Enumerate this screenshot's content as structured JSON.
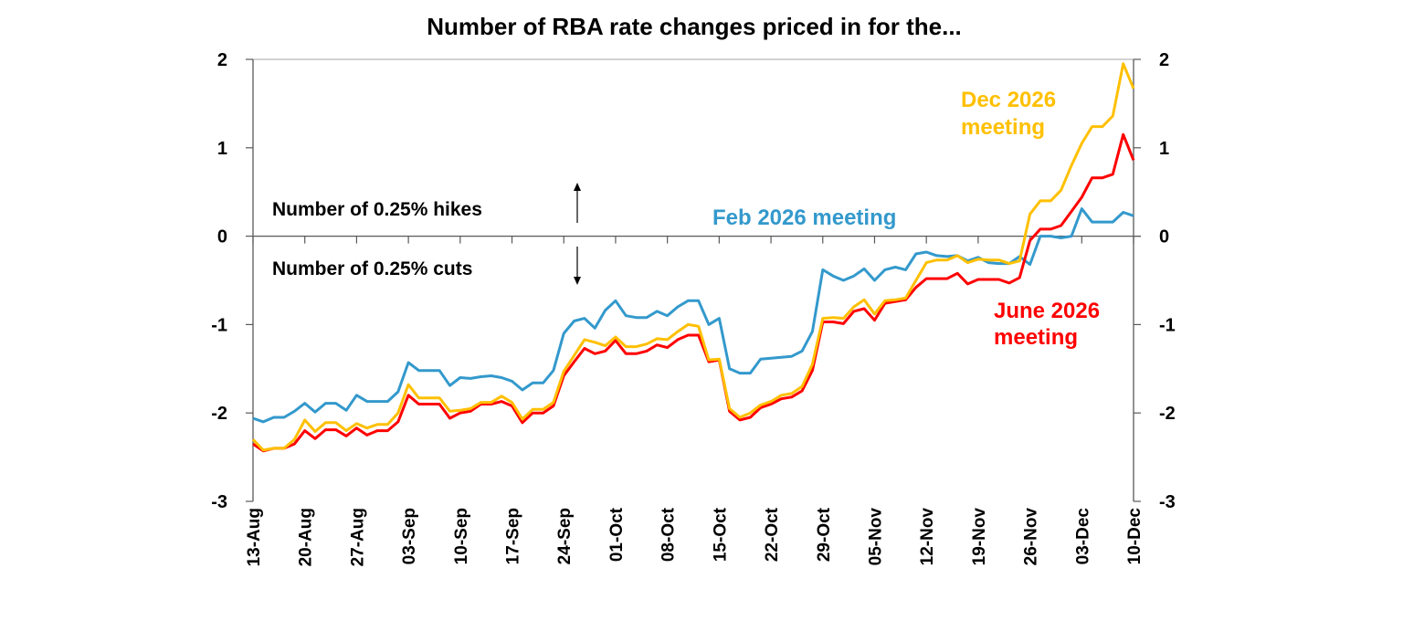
{
  "chart_data": {
    "type": "line",
    "title": "Number of RBA rate changes priced in for the...",
    "xlabel": "",
    "ylabel": "",
    "ylim": [
      -3,
      2
    ],
    "y_ticks": [
      2,
      1,
      0,
      -1,
      -2,
      -3
    ],
    "y_tick_labels": [
      "2",
      "1",
      "0",
      "-1",
      "-2",
      "-3"
    ],
    "x_tick_labels": [
      "13-Aug",
      "20-Aug",
      "27-Aug",
      "03-Sep",
      "10-Sep",
      "17-Sep",
      "24-Sep",
      "01-Oct",
      "08-Oct",
      "15-Oct",
      "22-Oct",
      "29-Oct",
      "05-Nov",
      "12-Nov",
      "19-Nov",
      "26-Nov",
      "03-Dec",
      "10-Dec"
    ],
    "grid": false,
    "secondary_y_axis": true,
    "dates": [
      "13-Aug",
      "14-Aug",
      "15-Aug",
      "18-Aug",
      "19-Aug",
      "20-Aug",
      "21-Aug",
      "22-Aug",
      "25-Aug",
      "26-Aug",
      "27-Aug",
      "28-Aug",
      "29-Aug",
      "01-Sep",
      "02-Sep",
      "03-Sep",
      "04-Sep",
      "05-Sep",
      "08-Sep",
      "09-Sep",
      "10-Sep",
      "11-Sep",
      "12-Sep",
      "15-Sep",
      "16-Sep",
      "17-Sep",
      "18-Sep",
      "19-Sep",
      "22-Sep",
      "23-Sep",
      "24-Sep",
      "25-Sep",
      "26-Sep",
      "29-Sep",
      "30-Sep",
      "01-Oct",
      "02-Oct",
      "03-Oct",
      "06-Oct",
      "07-Oct",
      "08-Oct",
      "09-Oct",
      "10-Oct",
      "13-Oct",
      "14-Oct",
      "15-Oct",
      "16-Oct",
      "17-Oct",
      "20-Oct",
      "21-Oct",
      "22-Oct",
      "23-Oct",
      "24-Oct",
      "27-Oct",
      "28-Oct",
      "29-Oct",
      "30-Oct",
      "31-Oct",
      "03-Nov",
      "04-Nov",
      "05-Nov",
      "06-Nov",
      "07-Nov",
      "10-Nov",
      "11-Nov",
      "12-Nov",
      "13-Nov",
      "14-Nov",
      "17-Nov",
      "18-Nov",
      "19-Nov",
      "20-Nov",
      "21-Nov",
      "24-Nov",
      "25-Nov",
      "26-Nov",
      "27-Nov",
      "28-Nov",
      "01-Dec",
      "02-Dec",
      "03-Dec",
      "04-Dec",
      "05-Dec",
      "08-Dec",
      "09-Dec",
      "10-Dec"
    ],
    "series": [
      {
        "name": "Feb 2026 meeting",
        "color": "#3399CC",
        "values": [
          -2.06,
          -2.1,
          -2.05,
          -2.05,
          -1.98,
          -1.89,
          -1.99,
          -1.89,
          -1.89,
          -1.97,
          -1.8,
          -1.87,
          -1.87,
          -1.87,
          -1.76,
          -1.43,
          -1.52,
          -1.52,
          -1.52,
          -1.69,
          -1.6,
          -1.61,
          -1.59,
          -1.58,
          -1.6,
          -1.64,
          -1.74,
          -1.66,
          -1.66,
          -1.52,
          -1.1,
          -0.96,
          -0.93,
          -1.04,
          -0.84,
          -0.73,
          -0.9,
          -0.92,
          -0.92,
          -0.85,
          -0.9,
          -0.8,
          -0.73,
          -0.73,
          -1.0,
          -0.93,
          -1.5,
          -1.55,
          -1.55,
          -1.39,
          -1.38,
          -1.37,
          -1.36,
          -1.3,
          -1.08,
          -0.38,
          -0.45,
          -0.5,
          -0.45,
          -0.37,
          -0.5,
          -0.38,
          -0.35,
          -0.38,
          -0.2,
          -0.18,
          -0.22,
          -0.23,
          -0.22,
          -0.28,
          -0.24,
          -0.3,
          -0.31,
          -0.31,
          -0.23,
          -0.32,
          0.0,
          0.0,
          -0.02,
          0.0,
          0.31,
          0.16,
          0.16,
          0.16,
          0.27,
          0.23
        ]
      },
      {
        "name": "June 2026 meeting",
        "color": "#FF0000",
        "values": [
          -2.35,
          -2.43,
          -2.4,
          -2.4,
          -2.35,
          -2.2,
          -2.29,
          -2.19,
          -2.19,
          -2.26,
          -2.17,
          -2.25,
          -2.2,
          -2.2,
          -2.1,
          -1.8,
          -1.9,
          -1.9,
          -1.9,
          -2.06,
          -2.0,
          -1.98,
          -1.9,
          -1.9,
          -1.87,
          -1.92,
          -2.11,
          -2.0,
          -2.0,
          -1.92,
          -1.58,
          -1.42,
          -1.27,
          -1.33,
          -1.3,
          -1.18,
          -1.33,
          -1.33,
          -1.3,
          -1.23,
          -1.26,
          -1.17,
          -1.12,
          -1.12,
          -1.42,
          -1.4,
          -1.98,
          -2.08,
          -2.05,
          -1.94,
          -1.9,
          -1.84,
          -1.82,
          -1.75,
          -1.52,
          -0.97,
          -0.97,
          -0.99,
          -0.85,
          -0.82,
          -0.95,
          -0.76,
          -0.74,
          -0.72,
          -0.58,
          -0.48,
          -0.48,
          -0.48,
          -0.42,
          -0.54,
          -0.49,
          -0.49,
          -0.49,
          -0.53,
          -0.47,
          -0.05,
          0.08,
          0.08,
          0.12,
          0.28,
          0.44,
          0.66,
          0.66,
          0.7,
          1.15,
          0.86
        ]
      },
      {
        "name": "Dec 2026 meeting",
        "color": "#FFC000",
        "values": [
          -2.3,
          -2.42,
          -2.4,
          -2.4,
          -2.3,
          -2.08,
          -2.21,
          -2.11,
          -2.11,
          -2.2,
          -2.12,
          -2.17,
          -2.13,
          -2.13,
          -2.0,
          -1.68,
          -1.83,
          -1.83,
          -1.83,
          -1.98,
          -1.97,
          -1.95,
          -1.88,
          -1.88,
          -1.81,
          -1.88,
          -2.07,
          -1.96,
          -1.96,
          -1.88,
          -1.53,
          -1.35,
          -1.17,
          -1.2,
          -1.24,
          -1.14,
          -1.25,
          -1.25,
          -1.22,
          -1.16,
          -1.17,
          -1.08,
          -1.0,
          -1.02,
          -1.4,
          -1.39,
          -1.95,
          -2.05,
          -2.0,
          -1.91,
          -1.87,
          -1.8,
          -1.78,
          -1.7,
          -1.45,
          -0.93,
          -0.92,
          -0.93,
          -0.8,
          -0.72,
          -0.88,
          -0.73,
          -0.72,
          -0.7,
          -0.5,
          -0.3,
          -0.27,
          -0.27,
          -0.22,
          -0.3,
          -0.26,
          -0.27,
          -0.27,
          -0.31,
          -0.28,
          0.25,
          0.4,
          0.4,
          0.52,
          0.8,
          1.05,
          1.24,
          1.24,
          1.36,
          1.95,
          1.67
        ]
      }
    ],
    "annotations": {
      "hikes": "Number of 0.25% hikes",
      "cuts": "Number of 0.25% cuts",
      "feb_label": "Feb 2026 meeting",
      "dec_label_1": "Dec 2026",
      "dec_label_2": "meeting",
      "june_label_1": "June 2026",
      "june_label_2": "meeting"
    }
  }
}
